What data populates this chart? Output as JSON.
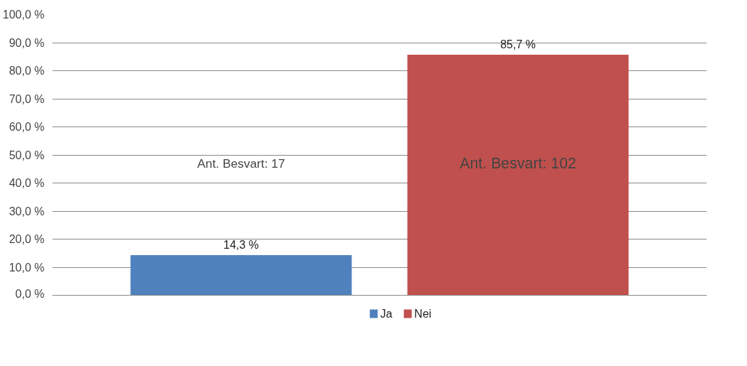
{
  "chart_data": {
    "type": "bar",
    "categories": [
      null
    ],
    "series": [
      {
        "name": "Ja",
        "color": "#4f81bd",
        "values": [
          14.3
        ],
        "value_labels": [
          "14,3 %"
        ]
      },
      {
        "name": "Nei",
        "color": "#c0504d",
        "values": [
          85.7
        ],
        "value_labels": [
          "85,7 %"
        ]
      }
    ],
    "ylim": [
      0,
      100
    ],
    "yticks": [
      {
        "value": 0,
        "label": "0,0 %"
      },
      {
        "value": 10,
        "label": "10,0 %"
      },
      {
        "value": 20,
        "label": "20,0 %"
      },
      {
        "value": 30,
        "label": "30,0 %"
      },
      {
        "value": 40,
        "label": "40,0 %"
      },
      {
        "value": 50,
        "label": "50,0 %"
      },
      {
        "value": 60,
        "label": "60,0 %"
      },
      {
        "value": 70,
        "label": "70,0 %"
      },
      {
        "value": 80,
        "label": "80,0 %"
      },
      {
        "value": 90,
        "label": "90,0 %"
      },
      {
        "value": 100,
        "label": "100,0 %"
      }
    ],
    "annotations": [
      "Ant. Besvart: 17",
      "Ant. Besvart: 102"
    ],
    "grid": "y",
    "legend": "bottom"
  }
}
